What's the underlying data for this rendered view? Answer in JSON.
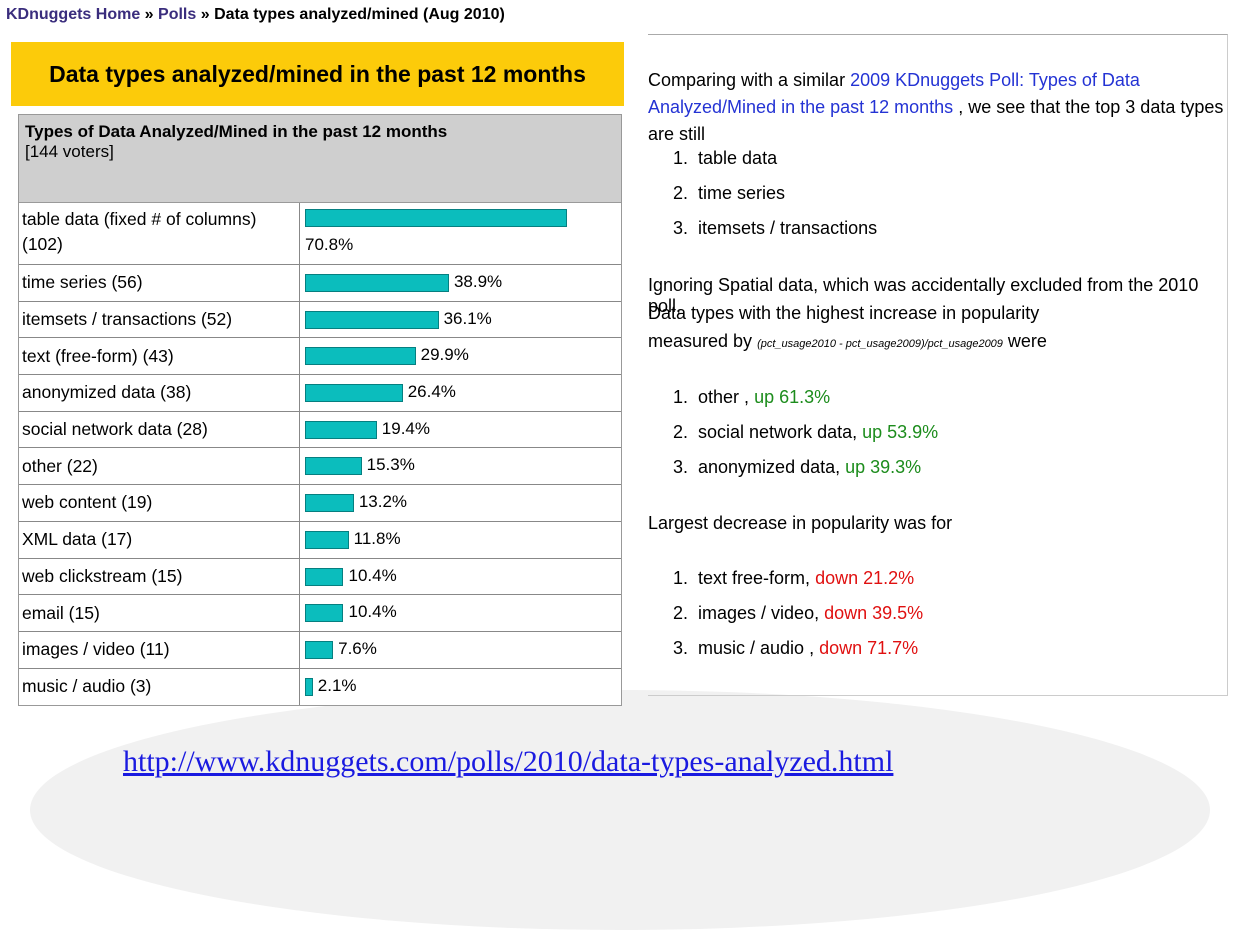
{
  "breadcrumb": {
    "home": "KDnuggets Home",
    "sep1": " » ",
    "polls": "Polls",
    "sep2": " » ",
    "current": "Data types analyzed/mined (Aug 2010)"
  },
  "banner_title": "Data types analyzed/mined in the past 12 months",
  "poll": {
    "question": "Types of Data Analyzed/Mined in the past 12 months",
    "voters": "[144 voters]"
  },
  "chart_data": {
    "type": "bar",
    "title": "Types of Data Analyzed/Mined in the past 12 months",
    "categories": [
      "table data (fixed # of columns) (102)",
      "time series (56)",
      "itemsets / transactions (52)",
      "text (free-form) (43)",
      "anonymized data (38)",
      "social network data (28)",
      "other (22)",
      "web content (19)",
      "XML data (17)",
      "web clickstream (15)",
      "email (15)",
      "images / video (11)",
      "music / audio (3)"
    ],
    "values": [
      70.8,
      38.9,
      36.1,
      29.9,
      26.4,
      19.4,
      15.3,
      13.2,
      11.8,
      10.4,
      10.4,
      7.6,
      2.1
    ],
    "value_labels": [
      "70.8%",
      "38.9%",
      "36.1%",
      "29.9%",
      "26.4%",
      "19.4%",
      "15.3%",
      "13.2%",
      "11.8%",
      "10.4%",
      "10.4%",
      "7.6%",
      "2.1%"
    ],
    "bar_color": "#0bbdbd",
    "xlim": [
      0,
      100
    ]
  },
  "right": {
    "intro_text": "Comparing with a similar ",
    "intro_link": "2009 KDnuggets Poll: Types of Data Analyzed/Mined in the past 12 months",
    "intro_rest": " , we see that the top 3 data types are still",
    "top3": [
      "table data",
      "time series",
      "itemsets / transactions"
    ],
    "ignoring_line1": "Ignoring Spatial data, which was accidentally excluded from the 2010 poll,",
    "ignoring_line2": "Data types with the highest increase in popularity",
    "measured_by": "measured by ",
    "formula": "(pct_usage2010 - pct_usage2009)/pct_usage2009",
    "were": " were",
    "increase": [
      {
        "name": "other ,",
        "change": "up 61.3%"
      },
      {
        "name": "social network data,",
        "change": "up 53.9%"
      },
      {
        "name": "anonymized data,",
        "change": "up 39.3%"
      }
    ],
    "decrease_heading": "Largest decrease in popularity was for",
    "decrease": [
      {
        "name": "text free-form,",
        "change": "down 21.2%"
      },
      {
        "name": "images / video,",
        "change": "down 39.5%"
      },
      {
        "name": "music / audio ,",
        "change": "down 71.7%"
      }
    ]
  },
  "source_url": "http://www.kdnuggets.com/polls/2010/data-types-analyzed.html"
}
